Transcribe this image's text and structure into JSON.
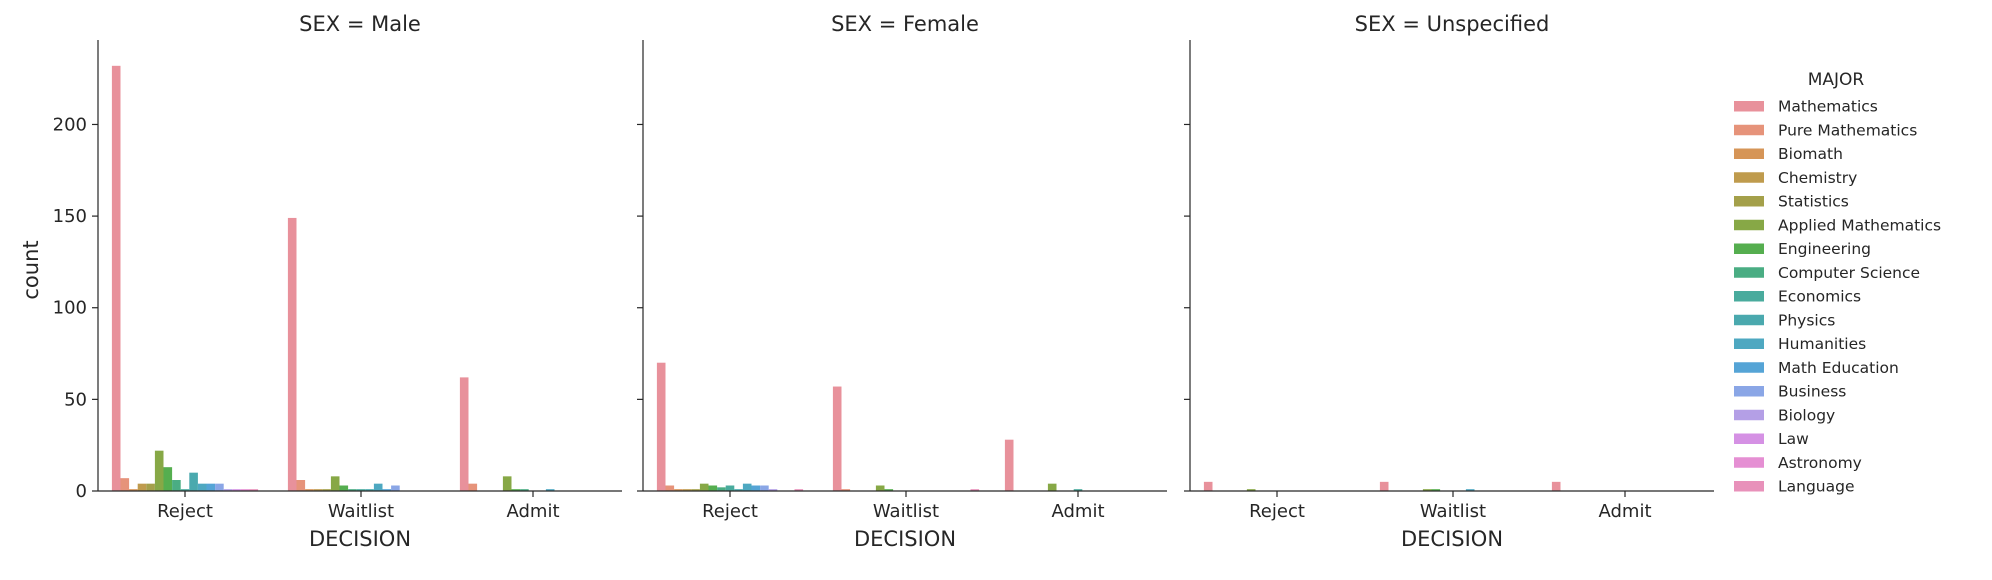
{
  "chart_data": {
    "type": "bar",
    "facet_label": "SEX",
    "facets": [
      "Male",
      "Female",
      "Unspecified"
    ],
    "panel_titles": [
      "SEX = Male",
      "SEX = Female",
      "SEX = Unspecified"
    ],
    "xlabel": "DECISION",
    "ylabel": "count",
    "categories": [
      "Reject",
      "Waitlist",
      "Admit"
    ],
    "ylim": [
      0,
      245
    ],
    "yticks": [
      0,
      50,
      100,
      150,
      200
    ],
    "yticklabels": [
      "0",
      "50",
      "100",
      "150",
      "200"
    ],
    "legend": {
      "title": "MAJOR",
      "placement": "right"
    },
    "grid": false,
    "series": [
      {
        "name": "Mathematics",
        "color": "#e8919b",
        "values": {
          "Male": [
            232,
            149,
            62
          ],
          "Female": [
            70,
            57,
            28
          ],
          "Unspecified": [
            5,
            5,
            5
          ]
        }
      },
      {
        "name": "Pure Mathematics",
        "color": "#e6937a",
        "values": {
          "Male": [
            7,
            6,
            4
          ],
          "Female": [
            3,
            1,
            0
          ],
          "Unspecified": [
            0,
            0,
            0
          ]
        }
      },
      {
        "name": "Biomath",
        "color": "#d69557",
        "values": {
          "Male": [
            1,
            1,
            0
          ],
          "Female": [
            1,
            0,
            0
          ],
          "Unspecified": [
            0,
            0,
            0
          ]
        }
      },
      {
        "name": "Chemistry",
        "color": "#bf9b4d",
        "values": {
          "Male": [
            4,
            1,
            0
          ],
          "Female": [
            1,
            0,
            0
          ],
          "Unspecified": [
            0,
            0,
            0
          ]
        }
      },
      {
        "name": "Statistics",
        "color": "#a4a04a",
        "values": {
          "Male": [
            4,
            1,
            0
          ],
          "Female": [
            1,
            0,
            0
          ],
          "Unspecified": [
            0,
            0,
            0
          ]
        }
      },
      {
        "name": "Applied Mathematics",
        "color": "#87a846",
        "values": {
          "Male": [
            22,
            8,
            8
          ],
          "Female": [
            4,
            3,
            4
          ],
          "Unspecified": [
            1,
            1,
            0
          ]
        }
      },
      {
        "name": "Engineering",
        "color": "#55ae4f",
        "values": {
          "Male": [
            13,
            3,
            1
          ],
          "Female": [
            3,
            1,
            0
          ],
          "Unspecified": [
            0,
            1,
            0
          ]
        }
      },
      {
        "name": "Computer Science",
        "color": "#4aad83",
        "values": {
          "Male": [
            6,
            1,
            1
          ],
          "Female": [
            2,
            0,
            0
          ],
          "Unspecified": [
            0,
            0,
            0
          ]
        }
      },
      {
        "name": "Economics",
        "color": "#49ab9d",
        "values": {
          "Male": [
            1,
            1,
            0
          ],
          "Female": [
            3,
            0,
            1
          ],
          "Unspecified": [
            0,
            0,
            0
          ]
        }
      },
      {
        "name": "Physics",
        "color": "#4aa9ae",
        "values": {
          "Male": [
            10,
            1,
            0
          ],
          "Female": [
            1,
            0,
            0
          ],
          "Unspecified": [
            0,
            0,
            0
          ]
        }
      },
      {
        "name": "Humanities",
        "color": "#4ea8c1",
        "values": {
          "Male": [
            4,
            4,
            1
          ],
          "Female": [
            4,
            0,
            0
          ],
          "Unspecified": [
            0,
            1,
            0
          ]
        }
      },
      {
        "name": "Math Education",
        "color": "#55a4d6",
        "values": {
          "Male": [
            4,
            1,
            0
          ],
          "Female": [
            3,
            0,
            0
          ],
          "Unspecified": [
            0,
            0,
            0
          ]
        }
      },
      {
        "name": "Business",
        "color": "#8aa6e6",
        "values": {
          "Male": [
            4,
            3,
            0
          ],
          "Female": [
            3,
            0,
            0
          ],
          "Unspecified": [
            0,
            0,
            0
          ]
        }
      },
      {
        "name": "Biology",
        "color": "#b49fe6",
        "values": {
          "Male": [
            1,
            0,
            0
          ],
          "Female": [
            1,
            0,
            0
          ],
          "Unspecified": [
            0,
            0,
            0
          ]
        }
      },
      {
        "name": "Law",
        "color": "#d591e4",
        "values": {
          "Male": [
            1,
            0,
            0
          ],
          "Female": [
            0,
            0,
            0
          ],
          "Unspecified": [
            0,
            0,
            0
          ]
        }
      },
      {
        "name": "Astronomy",
        "color": "#e58fd3",
        "values": {
          "Male": [
            1,
            0,
            0
          ],
          "Female": [
            0,
            0,
            0
          ],
          "Unspecified": [
            0,
            0,
            0
          ]
        }
      },
      {
        "name": "Language",
        "color": "#e891ba",
        "values": {
          "Male": [
            1,
            0,
            0
          ],
          "Female": [
            1,
            1,
            0
          ],
          "Unspecified": [
            0,
            0,
            0
          ]
        }
      }
    ]
  }
}
